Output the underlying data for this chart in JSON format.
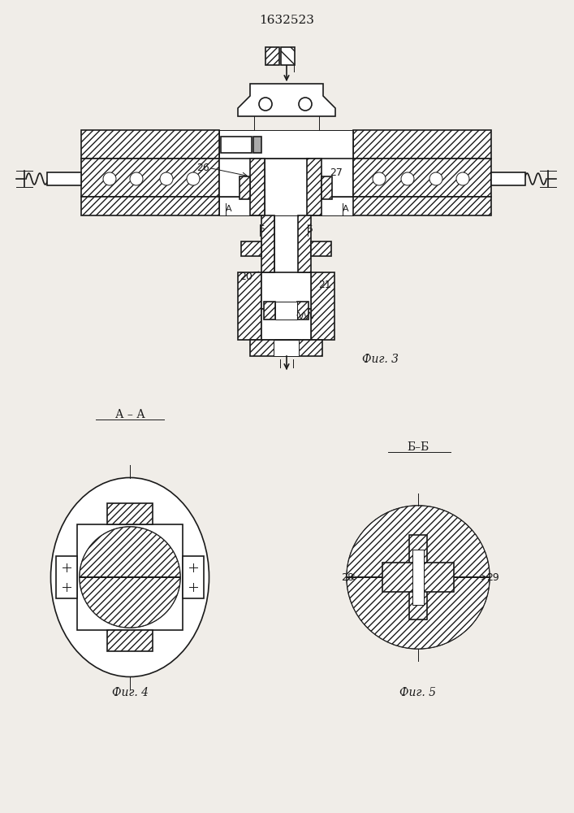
{
  "title": "1632523",
  "fig3_label": "Фиг. 3",
  "fig4_label": "Фиг. 4",
  "fig5_label": "Фиг. 5",
  "section_aa": "А – А",
  "section_bb": "Б–Б",
  "label_26": "26",
  "label_27": "27",
  "label_20": "20",
  "label_21": "21",
  "label_28": "28",
  "label_29": "29",
  "label_a1": "А",
  "label_a2": "А",
  "label_b1": "Б",
  "label_b2": "Б",
  "bg_color": "#f0ede8",
  "line_color": "#1a1a1a",
  "text_color": "#1a1a1a"
}
